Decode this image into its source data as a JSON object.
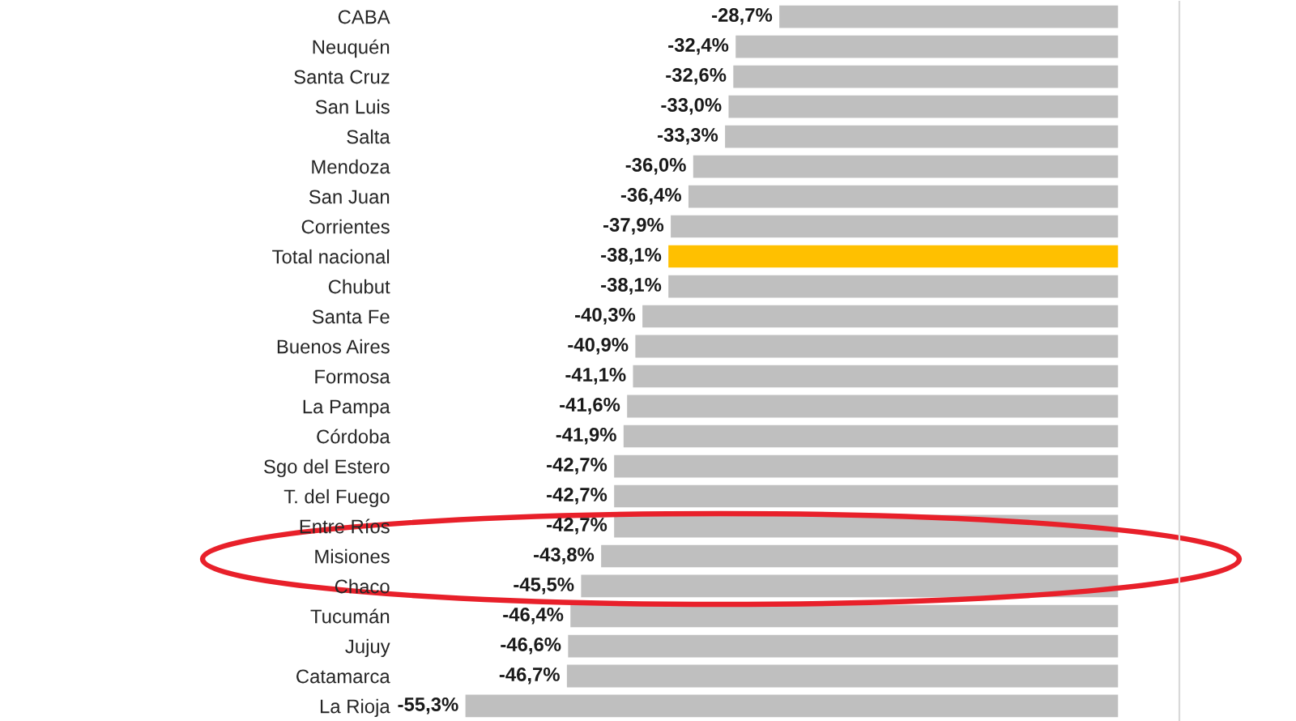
{
  "chart_data": {
    "type": "bar",
    "orientation": "horizontal",
    "categories": [
      "CABA",
      "Neuquén",
      "Santa Cruz",
      "San Luis",
      "Salta",
      "Mendoza",
      "San Juan",
      "Corrientes",
      "Total nacional",
      "Chubut",
      "Santa Fe",
      "Buenos Aires",
      "Formosa",
      "La Pampa",
      "Córdoba",
      "Sgo del Estero",
      "T. del Fuego",
      "Entre Ríos",
      "Misiones",
      "Chaco",
      "Tucumán",
      "Jujuy",
      "Catamarca",
      "La Rioja"
    ],
    "values": [
      -28.7,
      -32.4,
      -32.6,
      -33.0,
      -33.3,
      -36.0,
      -36.4,
      -37.9,
      -38.1,
      -38.1,
      -40.3,
      -40.9,
      -41.1,
      -41.6,
      -41.9,
      -42.7,
      -42.7,
      -42.7,
      -43.8,
      -45.5,
      -46.4,
      -46.6,
      -46.7,
      -55.3
    ],
    "value_labels": [
      "-28,7%",
      "-32,4%",
      "-32,6%",
      "-33,0%",
      "-33,3%",
      "-36,0%",
      "-36,4%",
      "-37,9%",
      "-38,1%",
      "-38,1%",
      "-40,3%",
      "-40,9%",
      "-41,1%",
      "-41,6%",
      "-41,9%",
      "-42,7%",
      "-42,7%",
      "-42,7%",
      "-43,8%",
      "-45,5%",
      "-46,4%",
      "-46,6%",
      "-46,7%",
      "-55,3%"
    ],
    "colors": [
      "#bfbfbf",
      "#bfbfbf",
      "#bfbfbf",
      "#bfbfbf",
      "#bfbfbf",
      "#bfbfbf",
      "#bfbfbf",
      "#bfbfbf",
      "#ffc000",
      "#bfbfbf",
      "#bfbfbf",
      "#bfbfbf",
      "#bfbfbf",
      "#bfbfbf",
      "#bfbfbf",
      "#bfbfbf",
      "#bfbfbf",
      "#bfbfbf",
      "#bfbfbf",
      "#bfbfbf",
      "#bfbfbf",
      "#bfbfbf",
      "#bfbfbf",
      "#bfbfbf"
    ],
    "tick_labels": "y"
  }
}
